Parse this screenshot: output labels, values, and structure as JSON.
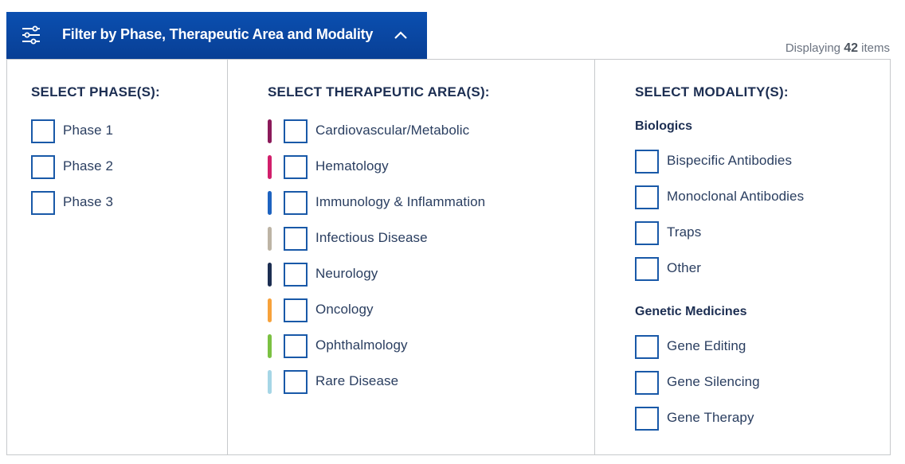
{
  "filter_toggle": {
    "label": "Filter by Phase, Therapeutic Area and Modality",
    "icon": "sliders-icon",
    "chevron_icon": "chevron-up-icon",
    "background": "#0b4aa8"
  },
  "results": {
    "prefix": "Displaying",
    "count": "42",
    "suffix": "items"
  },
  "phase": {
    "heading": "SELECT PHASE(S):",
    "options": [
      {
        "label": "Phase 1",
        "checked": false
      },
      {
        "label": "Phase 2",
        "checked": false
      },
      {
        "label": "Phase 3",
        "checked": false
      }
    ]
  },
  "therapeutic": {
    "heading": "SELECT THERAPEUTIC AREA(S):",
    "options": [
      {
        "label": "Cardiovascular/Metabolic",
        "color": "#8b1a5a",
        "checked": false
      },
      {
        "label": "Hematology",
        "color": "#d11f6b",
        "checked": false
      },
      {
        "label": "Immunology & Inflammation",
        "color": "#1e63c0",
        "checked": false
      },
      {
        "label": "Infectious Disease",
        "color": "#bdb4a5",
        "checked": false
      },
      {
        "label": "Neurology",
        "color": "#1c2e52",
        "checked": false
      },
      {
        "label": "Oncology",
        "color": "#f7a23b",
        "checked": false
      },
      {
        "label": "Ophthalmology",
        "color": "#7bc142",
        "checked": false
      },
      {
        "label": "Rare Disease",
        "color": "#a6d6e6",
        "checked": false
      }
    ]
  },
  "modality": {
    "heading": "SELECT MODALITY(S):",
    "biologics": {
      "heading": "Biologics",
      "options": [
        {
          "label": "Bispecific Antibodies",
          "checked": false
        },
        {
          "label": "Monoclonal Antibodies",
          "checked": false
        },
        {
          "label": "Traps",
          "checked": false
        },
        {
          "label": "Other",
          "checked": false
        }
      ]
    },
    "genetic": {
      "heading": "Genetic Medicines",
      "options": [
        {
          "label": "Gene Editing",
          "checked": false
        },
        {
          "label": "Gene Silencing",
          "checked": false
        },
        {
          "label": "Gene Therapy",
          "checked": false
        }
      ]
    }
  }
}
